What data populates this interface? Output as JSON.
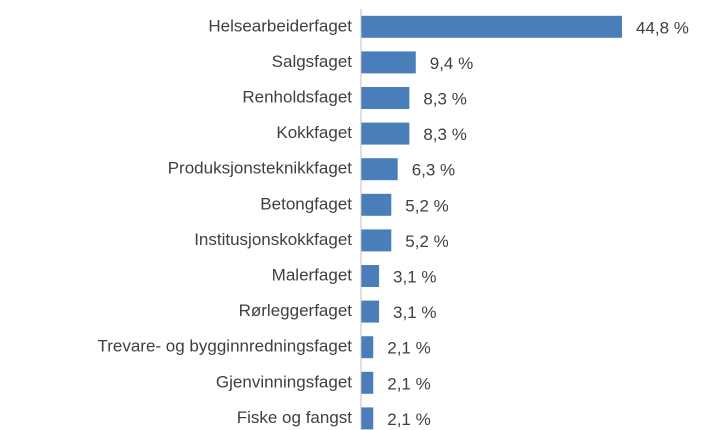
{
  "chart_data": {
    "type": "hbar",
    "categories": [
      "Helsearbeiderfaget",
      "Salgsfaget",
      "Renholdsfaget",
      "Kokkfaget",
      "Produksjonsteknikkfaget",
      "Betongfaget",
      "Institusjonskokkfaget",
      "Malerfaget",
      "Rørleggerfaget",
      "Trevare- og bygginnredningsfaget",
      "Gjenvinningsfaget",
      "Fiske og fangst"
    ],
    "values": [
      44.8,
      9.4,
      8.3,
      8.3,
      6.3,
      5.2,
      5.2,
      3.1,
      3.1,
      2.1,
      2.1,
      2.1
    ],
    "value_labels": [
      "44,8 %",
      "9,4 %",
      "8,3 %",
      "8,3 %",
      "6,3 %",
      "5,2 %",
      "5,2 %",
      "3,1 %",
      "3,1 %",
      "2,1 %",
      "2,1 %",
      "2,1 %"
    ],
    "color": "#4a7ebb"
  }
}
